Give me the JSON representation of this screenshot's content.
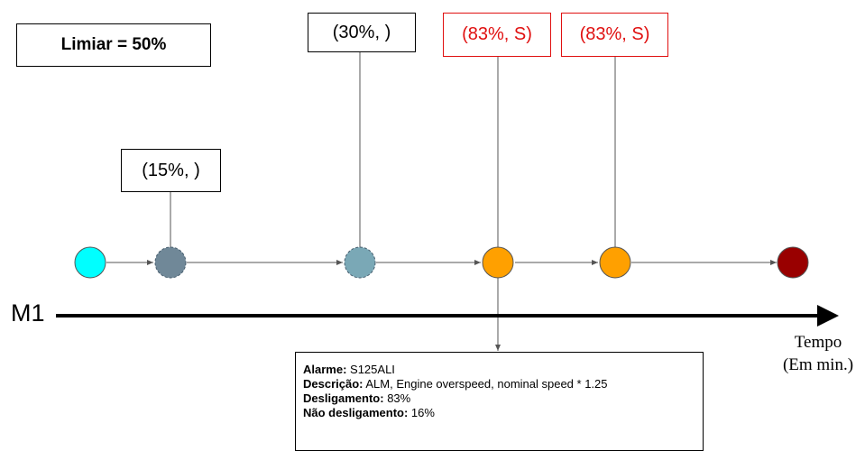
{
  "threshold_label": "Limiar = 50%",
  "timeline": {
    "label": "M1",
    "axis_title_line1": "Tempo",
    "axis_title_line2": "(Em min.)"
  },
  "events": [
    {
      "label": "(15%, )",
      "highlight": false
    },
    {
      "label": "(30%, )",
      "highlight": false
    },
    {
      "label": "(83%, S)",
      "highlight": true
    },
    {
      "label": "(83%, S)",
      "highlight": true
    }
  ],
  "nodes": [
    {
      "name": "start",
      "color": "#00ffff",
      "dashed": false
    },
    {
      "name": "event-15",
      "color": "#708898",
      "dashed": true
    },
    {
      "name": "event-30",
      "color": "#7aa8b6",
      "dashed": true
    },
    {
      "name": "event-83-a",
      "color": "#ffa000",
      "dashed": false
    },
    {
      "name": "event-83-b",
      "color": "#ffa000",
      "dashed": false
    },
    {
      "name": "end",
      "color": "#990000",
      "dashed": false
    }
  ],
  "info": {
    "alarm_label": "Alarme:",
    "alarm_value": " S125ALI",
    "desc_label": "Descrição:",
    "desc_value": " ALM, Engine overspeed, nominal speed * 1.25",
    "shutdown_label": "Desligamento:",
    "shutdown_value": " 83%",
    "no_shutdown_label": "Não desligamento:",
    "no_shutdown_value": " 16%"
  },
  "colors": {
    "highlight": "#e01010",
    "line": "#000000",
    "connector": "#555555"
  }
}
